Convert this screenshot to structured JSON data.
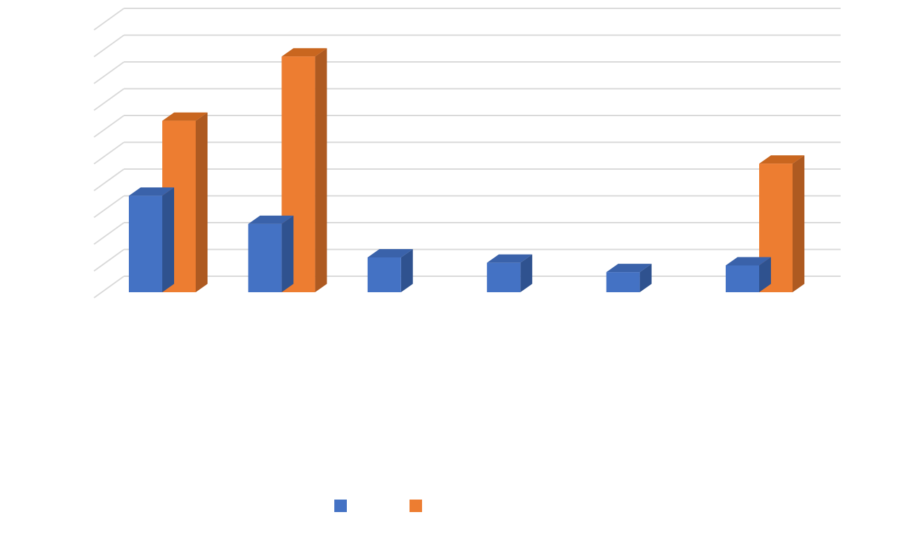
{
  "colors": {
    "background": "#ffffff",
    "gridline": "#d9d9d9",
    "series_1_front": "#4472c4",
    "series_1_side": "#2f528f",
    "series_1_top": "#3a62aa",
    "series_2_front": "#ed7d31",
    "series_2_side": "#ae5a21",
    "series_2_top": "#c9661f"
  },
  "chart_data": {
    "type": "bar",
    "style": "3d-clustered-column",
    "title": "",
    "xlabel": "",
    "ylabel": "",
    "categories": [
      "",
      "",
      "",
      "",
      "",
      ""
    ],
    "series": [
      {
        "values": [
          3.6,
          2.55,
          1.3,
          1.1,
          0.75,
          1.0
        ]
      },
      {
        "values": [
          6.4,
          8.8,
          null,
          null,
          null,
          4.8
        ]
      }
    ],
    "ylim": [
      0,
      10
    ],
    "gridlines": true,
    "gridline_count": 10,
    "tick_labels_visible": false,
    "legend": {
      "position": "bottom",
      "entries": 2
    }
  }
}
